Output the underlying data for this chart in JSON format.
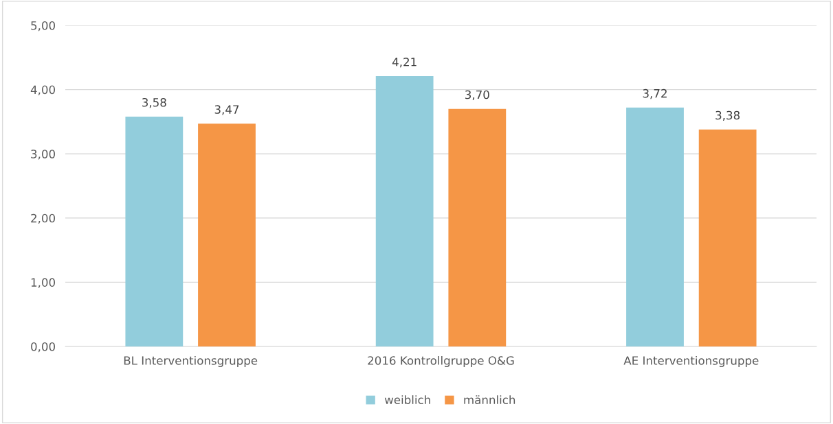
{
  "chart_data": {
    "type": "bar",
    "categories": [
      "BL Interventionsgruppe",
      "2016 Kontrollgruppe O&G",
      "AE Interventionsgruppe"
    ],
    "series": [
      {
        "name": "weiblich",
        "color": "#92cddc",
        "values": [
          3.58,
          4.21,
          3.72
        ],
        "value_labels": [
          "3,58",
          "4,21",
          "3,72"
        ]
      },
      {
        "name": "männlich",
        "color": "#f59646",
        "values": [
          3.47,
          3.7,
          3.38
        ],
        "value_labels": [
          "3,47",
          "3,70",
          "3,38"
        ]
      }
    ],
    "ylim": [
      0,
      5
    ],
    "yticks": [
      {
        "value": 0,
        "label": "0,00"
      },
      {
        "value": 1,
        "label": "1,00"
      },
      {
        "value": 2,
        "label": "2,00"
      },
      {
        "value": 3,
        "label": "3,00"
      },
      {
        "value": 4,
        "label": "4,00"
      },
      {
        "value": 5,
        "label": "5,00"
      }
    ],
    "grid": "y",
    "legend": "bottom"
  }
}
